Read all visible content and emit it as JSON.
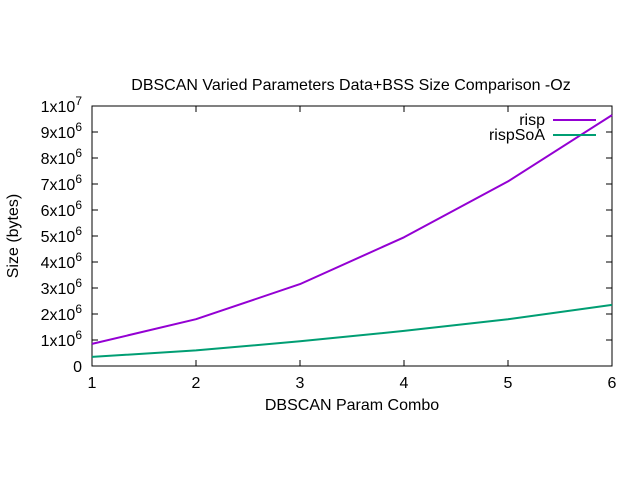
{
  "chart_data": {
    "type": "line",
    "title": "DBSCAN Varied Parameters Data+BSS Size Comparison -Oz",
    "xlabel": "DBSCAN Param Combo",
    "ylabel": "Size (bytes)",
    "x": [
      1,
      2,
      3,
      4,
      5,
      6
    ],
    "xlim": [
      1,
      6
    ],
    "ylim": [
      0,
      10000000
    ],
    "x_ticks": [
      "1",
      "2",
      "3",
      "4",
      "5",
      "6"
    ],
    "y_ticks": [
      {
        "value": 0,
        "mant": "0",
        "exp": ""
      },
      {
        "value": 1000000,
        "mant": "1x10",
        "exp": "6"
      },
      {
        "value": 2000000,
        "mant": "2x10",
        "exp": "6"
      },
      {
        "value": 3000000,
        "mant": "3x10",
        "exp": "6"
      },
      {
        "value": 4000000,
        "mant": "4x10",
        "exp": "6"
      },
      {
        "value": 5000000,
        "mant": "5x10",
        "exp": "6"
      },
      {
        "value": 6000000,
        "mant": "6x10",
        "exp": "6"
      },
      {
        "value": 7000000,
        "mant": "7x10",
        "exp": "6"
      },
      {
        "value": 8000000,
        "mant": "8x10",
        "exp": "6"
      },
      {
        "value": 9000000,
        "mant": "9x10",
        "exp": "6"
      },
      {
        "value": 10000000,
        "mant": "1x10",
        "exp": "7"
      }
    ],
    "grid": false,
    "legend_position": "top-right",
    "series": [
      {
        "name": "risp",
        "color": "#9400d3",
        "values": [
          850000,
          1800000,
          3150000,
          4950000,
          7100000,
          9650000
        ]
      },
      {
        "name": "rispSoA",
        "color": "#009e73",
        "values": [
          350000,
          600000,
          950000,
          1350000,
          1800000,
          2350000
        ]
      }
    ]
  }
}
